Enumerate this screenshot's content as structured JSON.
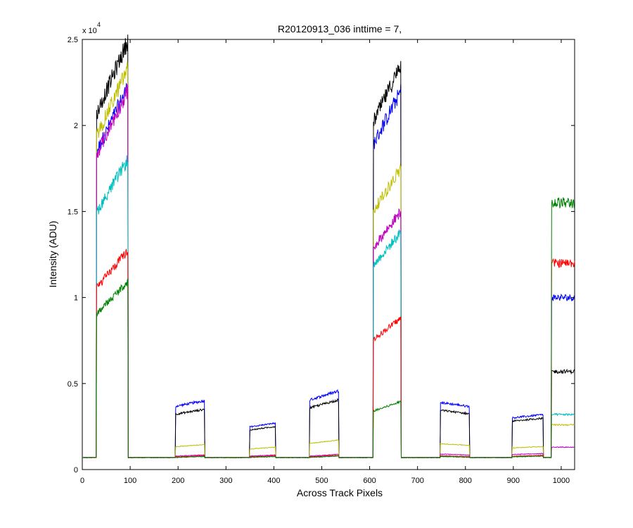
{
  "chart_data": {
    "type": "line",
    "title": "R20120913_036 inttime = 7,",
    "xlabel": "Across Track Pixels",
    "ylabel": "Intensity (ADU)",
    "y_exponent_label": "x 10",
    "y_exponent_power": "4",
    "xlim": [
      0,
      1028
    ],
    "ylim": [
      0,
      25000
    ],
    "xticks": [
      0,
      100,
      200,
      300,
      400,
      500,
      600,
      700,
      800,
      900,
      1000
    ],
    "yticks": [
      0,
      5000,
      10000,
      15000,
      20000,
      25000
    ],
    "ytick_labels": [
      "0",
      "0.5",
      "1",
      "1.5",
      "2",
      "2.5"
    ],
    "grid": false,
    "baseline": 700,
    "segments": [
      {
        "start": 30,
        "end": 95,
        "start_f": 0.88,
        "end_f": 1.06
      },
      {
        "start": 195,
        "end": 255,
        "start_f": 0.92,
        "end_f": 1.0
      },
      {
        "start": 350,
        "end": 403,
        "start_f": 0.92,
        "end_f": 1.0
      },
      {
        "start": 475,
        "end": 535,
        "start_f": 0.92,
        "end_f": 1.04
      },
      {
        "start": 608,
        "end": 665,
        "start_f": 0.86,
        "end_f": 1.0
      },
      {
        "start": 748,
        "end": 808,
        "start_f": 1.0,
        "end_f": 0.94
      },
      {
        "start": 898,
        "end": 962,
        "start_f": 0.97,
        "end_f": 1.03
      },
      {
        "start": 980,
        "end": 1028,
        "start_f": 1.0,
        "end_f": 1.0
      }
    ],
    "series": [
      {
        "color": "#0000ff",
        "values": [
          21000,
          4000,
          2700,
          4400,
          22000,
          3900,
          3100,
          10000
        ]
      },
      {
        "color": "#000000",
        "values": [
          23500,
          3500,
          2500,
          3900,
          23500,
          3450,
          2900,
          5700
        ]
      },
      {
        "color": "#bfbf00",
        "values": [
          22000,
          1450,
          1300,
          1650,
          17500,
          1500,
          1300,
          2600
        ]
      },
      {
        "color": "#bf00bf",
        "values": [
          20800,
          850,
          850,
          850,
          15000,
          900,
          900,
          1300
        ]
      },
      {
        "color": "#00bfbf",
        "values": [
          17000,
          780,
          780,
          780,
          13800,
          780,
          780,
          3200
        ]
      },
      {
        "color": "#ff0000",
        "values": [
          12000,
          800,
          800,
          800,
          8800,
          800,
          800,
          12000
        ]
      },
      {
        "color": "#008000",
        "values": [
          10300,
          760,
          760,
          760,
          3950,
          760,
          760,
          15500
        ]
      }
    ]
  }
}
